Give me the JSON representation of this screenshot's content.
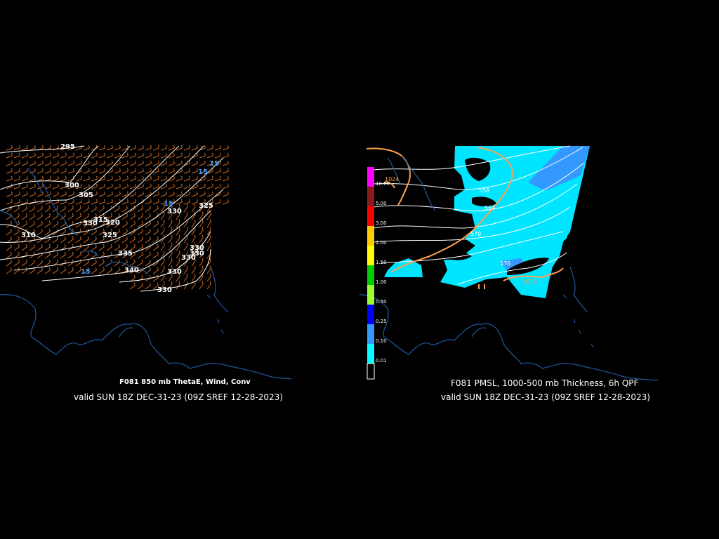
{
  "left": {
    "title": "F081 850 mb ThetaE, Wind, Conv",
    "valid": "valid SUN 18Z DEC-31-23 (09Z SREF 12-28-2023)",
    "theta_labels": [
      "295",
      "300",
      "305",
      "310",
      "315",
      "320",
      "325",
      "330",
      "335",
      "340",
      "330",
      "330",
      "325",
      "330",
      "330",
      "330",
      "330"
    ],
    "conv_labels": [
      "15",
      "15",
      "15",
      "15"
    ],
    "colors": {
      "theta": "#ffffff",
      "wind": "#d2691e",
      "conv": "#3399ff",
      "coast": "#1e5aa0"
    }
  },
  "right": {
    "title": "F081 PMSL, 1000-500 mb Thickness, 6h QPF",
    "valid": "valid SUN 18Z DEC-31-23 (09Z SREF 12-28-2023)",
    "colorbar": [
      {
        "label": "10.00",
        "color": "#ff00ff"
      },
      {
        "label": "5.00",
        "color": "#8b1a1a"
      },
      {
        "label": "3.00",
        "color": "#ff0000"
      },
      {
        "label": "2.00",
        "color": "#ffcc00"
      },
      {
        "label": "1.50",
        "color": "#ffff00"
      },
      {
        "label": "1.00",
        "color": "#00cc00"
      },
      {
        "label": "0.50",
        "color": "#99ff33"
      },
      {
        "label": "0.25",
        "color": "#0000ff"
      },
      {
        "label": "0.10",
        "color": "#3399ff"
      },
      {
        "label": "0.01",
        "color": "#00ffff"
      },
      {
        "label": "",
        "color": "#000000"
      }
    ],
    "isobar_labels": [
      "1024",
      "1016"
    ],
    "thickness_labels": [
      "558",
      "564",
      "570",
      "576"
    ],
    "colors": {
      "qpf_light": "#00e5ff",
      "qpf_mid": "#3399ff",
      "isobar": "#ffa050",
      "thickness": "#ffffff",
      "coast": "#1e5aa0"
    }
  }
}
